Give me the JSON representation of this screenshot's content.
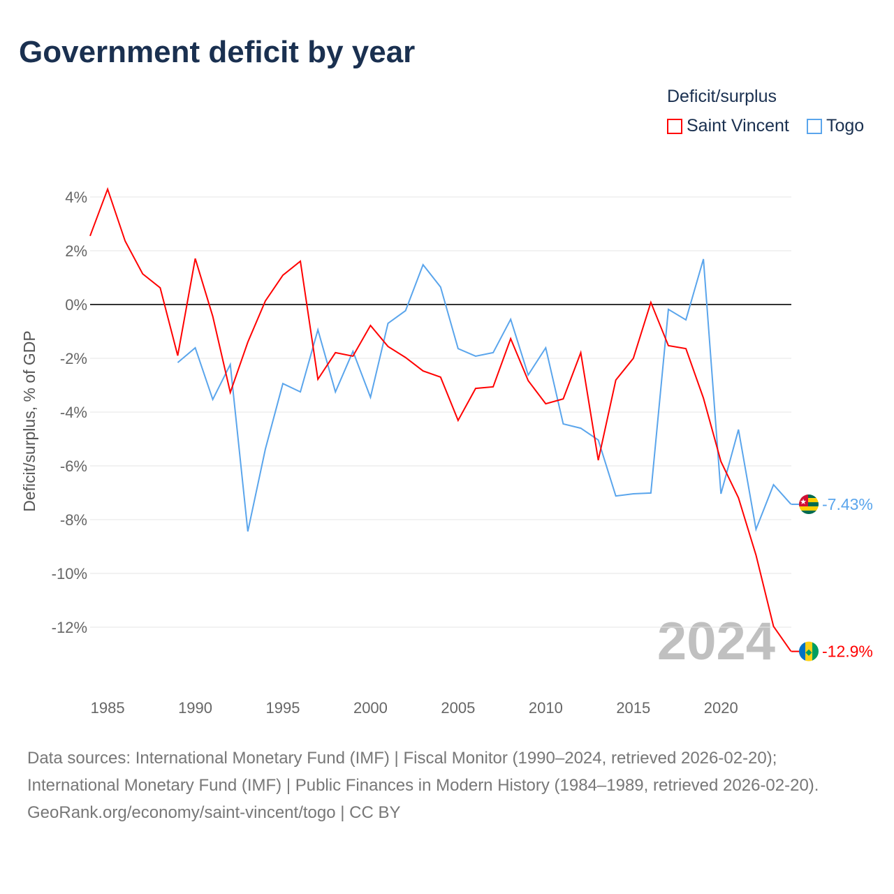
{
  "title": "Government deficit by year",
  "legend": {
    "title": "Deficit/surplus"
  },
  "sources": {
    "line1": "Data sources: International Monetary Fund (IMF) | Fiscal Monitor (1990–2024, retrieved 2026-02-20); International Monetary Fund (IMF) | Public Finances in Modern History (1984–1989, retrieved 2026-02-20).",
    "line2": "GeoRank.org/economy/saint-vincent/togo | CC BY"
  },
  "chart_data": {
    "type": "line",
    "title": "Government deficit by year",
    "ylabel": "Deficit/surplus, % of GDP",
    "xlabel": "",
    "xlim": [
      1984,
      2024
    ],
    "ylim": [
      -14,
      4.5
    ],
    "yticks": [
      4,
      2,
      0,
      -2,
      -4,
      -6,
      -8,
      -10,
      -12
    ],
    "ytick_labels": [
      "4%",
      "2%",
      "0%",
      "-2%",
      "-4%",
      "-6%",
      "-8%",
      "-10%",
      "-12%"
    ],
    "xticks": [
      1985,
      1990,
      1995,
      2000,
      2005,
      2010,
      2015,
      2020
    ],
    "xtick_labels": [
      "1985",
      "1990",
      "1995",
      "2000",
      "2005",
      "2010",
      "2015",
      "2020"
    ],
    "watermark_year": "2024",
    "grid": true,
    "legend_position": "top-right",
    "series": [
      {
        "name": "Saint Vincent",
        "color": "#ff0000",
        "end_label": "-12.9%",
        "start_year": 1984,
        "values": [
          2.55,
          4.29,
          2.36,
          1.14,
          0.62,
          -1.9,
          1.71,
          -0.44,
          -3.27,
          -1.4,
          0.13,
          1.09,
          1.61,
          -2.78,
          -1.79,
          -1.92,
          -0.78,
          -1.56,
          -1.97,
          -2.47,
          -2.7,
          -4.31,
          -3.12,
          -3.06,
          -1.27,
          -2.83,
          -3.69,
          -3.51,
          -1.79,
          -5.79,
          -2.81,
          -2.0,
          0.08,
          -1.53,
          -1.64,
          -3.48,
          -5.84,
          -7.19,
          -9.32,
          -11.97,
          -12.9
        ]
      },
      {
        "name": "Togo",
        "color": "#5aa5ec",
        "end_label": "-7.43%",
        "start_year": 1989,
        "values": [
          -2.16,
          -1.61,
          -3.53,
          -2.23,
          -8.44,
          -5.38,
          -2.94,
          -3.25,
          -0.94,
          -3.25,
          -1.74,
          -3.45,
          -0.7,
          -0.23,
          1.48,
          0.65,
          -1.64,
          -1.92,
          -1.79,
          -0.55,
          -2.62,
          -1.61,
          -4.44,
          -4.6,
          -5.04,
          -7.12,
          -7.04,
          -7.01,
          -0.18,
          -0.57,
          1.69,
          -7.04,
          -4.65,
          -8.36,
          -6.7,
          -7.43
        ]
      }
    ]
  }
}
